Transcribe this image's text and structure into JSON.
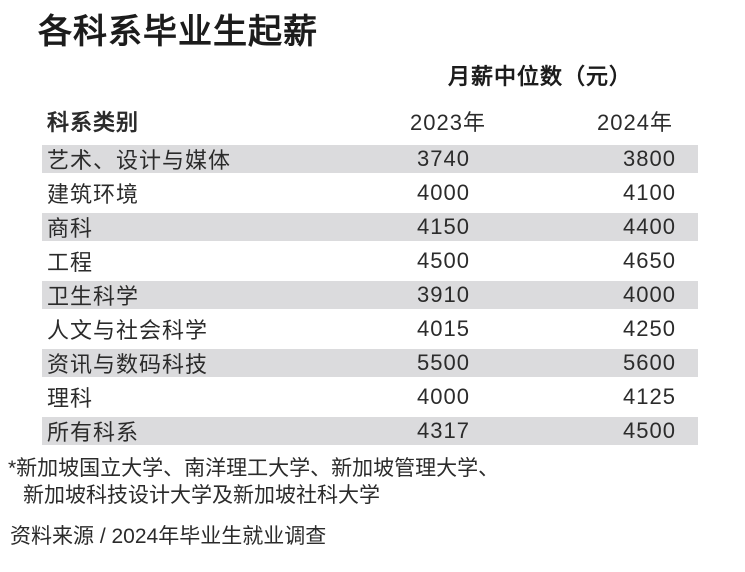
{
  "colors": {
    "background": "#ffffff",
    "row_stripe": "#dbdbdd",
    "text": "#2b2b2b",
    "title_text": "#1c1c1c"
  },
  "chart_data": {
    "type": "table",
    "title": "各科系毕业生起薪",
    "unit_label": "月薪中位数（元）",
    "columns": [
      "科系类别",
      "2023年",
      "2024年"
    ],
    "rows": [
      [
        "艺术、设计与媒体",
        3740,
        3800
      ],
      [
        "建筑环境",
        4000,
        4100
      ],
      [
        "商科",
        4150,
        4400
      ],
      [
        "工程",
        4500,
        4650
      ],
      [
        "卫生科学",
        3910,
        4000
      ],
      [
        "人文与社会科学",
        4015,
        4250
      ],
      [
        "资讯与数码科技",
        5500,
        5600
      ],
      [
        "理科",
        4000,
        4125
      ],
      [
        "所有科系",
        4317,
        4500
      ]
    ],
    "footnote_lines": [
      "*新加坡国立大学、南洋理工大学、新加坡管理大学、",
      "新加坡科技设计大学及新加坡社科大学"
    ],
    "source": "资料来源 / 2024年毕业生就业调查",
    "layout": {
      "stripe_rows": "odd",
      "legend": "none",
      "grid": "off"
    }
  }
}
